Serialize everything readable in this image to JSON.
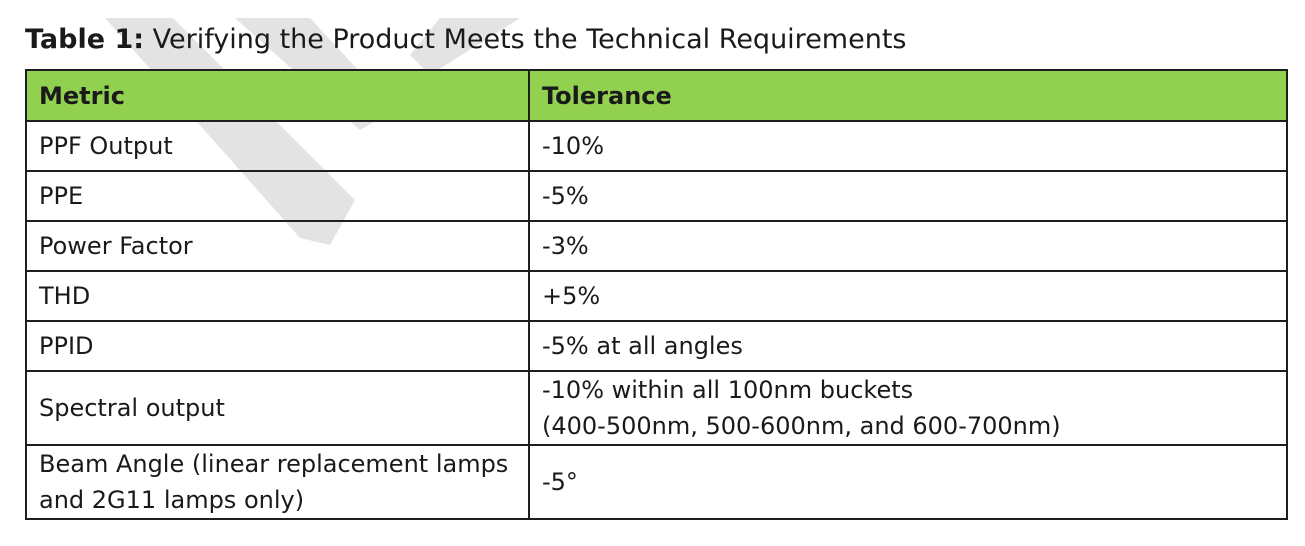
{
  "caption": {
    "label": "Table 1:",
    "text": "Verifying the Product Meets the Technical Requirements"
  },
  "table": {
    "headers": [
      "Metric",
      "Tolerance"
    ],
    "rows": [
      {
        "metric": "PPF Output",
        "tolerance": "-10%"
      },
      {
        "metric": "PPE",
        "tolerance": "-5%"
      },
      {
        "metric": "Power Factor",
        "tolerance": "-3%"
      },
      {
        "metric": "THD",
        "tolerance": "+5%"
      },
      {
        "metric": "PPID",
        "tolerance": "-5% at all angles"
      },
      {
        "metric": "Spectral output",
        "tolerance": "-10% within all 100nm buckets\n(400-500nm, 500-600nm, and 600-700nm)"
      },
      {
        "metric": "Beam Angle (linear replacement lamps and 2G11 lamps only)",
        "tolerance": "-5°"
      }
    ]
  },
  "colors": {
    "header_background": "#92d050",
    "watermark": "#e4e4e4",
    "border": "#1e1e1e"
  }
}
